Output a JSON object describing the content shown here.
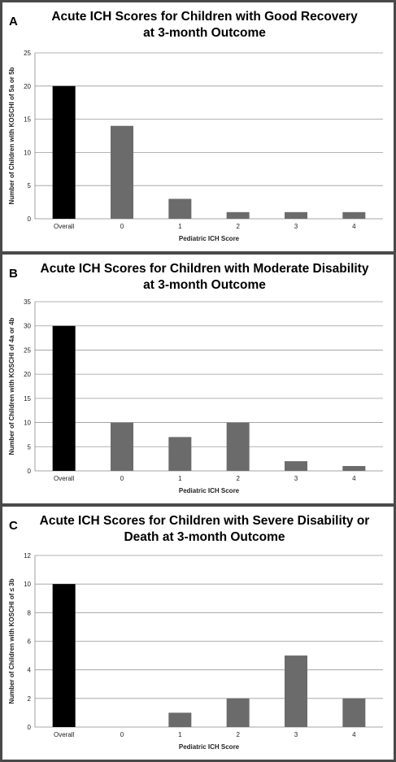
{
  "chart_data": [
    {
      "type": "bar",
      "panel_label": "A",
      "title_lines": [
        "Acute ICH Scores for Children with Good Recovery",
        "at 3-month Outcome"
      ],
      "categories": [
        "Overall",
        "0",
        "1",
        "2",
        "3",
        "4"
      ],
      "values": [
        20,
        14,
        3,
        1,
        1,
        1
      ],
      "xlabel": "Pediatric ICH Score",
      "ylabel": "Number of Children with KOSCHI of 5a or 5b",
      "ylim": [
        0,
        25
      ],
      "yticks": [
        0,
        5,
        10,
        15,
        20,
        25
      ],
      "grid": true,
      "bar_colors": [
        "#000000",
        "#6b6b6b",
        "#6b6b6b",
        "#6b6b6b",
        "#6b6b6b",
        "#6b6b6b"
      ]
    },
    {
      "type": "bar",
      "panel_label": "B",
      "title_lines": [
        "Acute ICH Scores for Children with Moderate Disability",
        "at 3-month Outcome"
      ],
      "categories": [
        "Overall",
        "0",
        "1",
        "2",
        "3",
        "4"
      ],
      "values": [
        30,
        10,
        7,
        10,
        2,
        1
      ],
      "xlabel": "Pediatric ICH Score",
      "ylabel": "Number of Children with KOSCHI of 4a or 4b",
      "ylim": [
        0,
        35
      ],
      "yticks": [
        0,
        5,
        10,
        15,
        20,
        25,
        30,
        35
      ],
      "grid": true,
      "bar_colors": [
        "#000000",
        "#6b6b6b",
        "#6b6b6b",
        "#6b6b6b",
        "#6b6b6b",
        "#6b6b6b"
      ]
    },
    {
      "type": "bar",
      "panel_label": "C",
      "title_lines": [
        "Acute ICH Scores for Children with Severe Disability or",
        "Death at 3-month Outcome"
      ],
      "categories": [
        "Overall",
        "0",
        "1",
        "2",
        "3",
        "4"
      ],
      "values": [
        10,
        0,
        1,
        2,
        5,
        2
      ],
      "xlabel": "Pediatric ICH Score",
      "ylabel": "Number of Children with KOSCHI of ≤ 3b",
      "ylim": [
        0,
        12
      ],
      "yticks": [
        0,
        2,
        4,
        6,
        8,
        10,
        12
      ],
      "grid": true,
      "bar_colors": [
        "#000000",
        "#6b6b6b",
        "#6b6b6b",
        "#6b6b6b",
        "#6b6b6b",
        "#6b6b6b"
      ]
    }
  ]
}
